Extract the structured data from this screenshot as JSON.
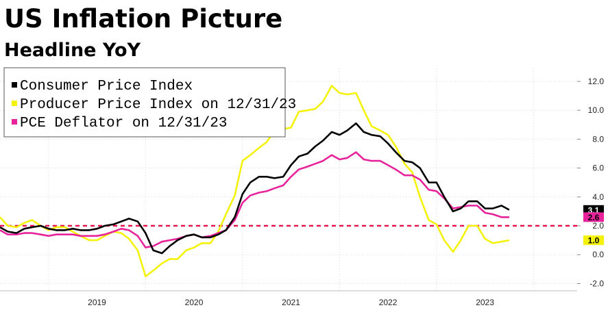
{
  "chart_data": {
    "type": "line",
    "title": "US Inflation Picture",
    "subtitle": "Headline YoY",
    "xlabel": "",
    "ylabel": "",
    "x_ticks": [
      "2019",
      "2020",
      "2021",
      "2022",
      "2023"
    ],
    "y_ticks": [
      "12.0",
      "10.0",
      "8.0",
      "6.0",
      "4.0",
      "2.0",
      "0.0",
      "-2.0"
    ],
    "ylim": [
      -2.5,
      12.9
    ],
    "xlim": [
      2018.0,
      2023.95
    ],
    "grid": true,
    "legend_position": "top-left",
    "reference_line": {
      "value": 2.0,
      "color": "#e8174d",
      "style": "dashed"
    },
    "series": [
      {
        "name": "Consumer Price Index",
        "color": "#000000",
        "end_label": "3.1",
        "points": [
          [
            2018.0,
            1.9
          ],
          [
            2018.08,
            1.6
          ],
          [
            2018.17,
            1.5
          ],
          [
            2018.25,
            1.8
          ],
          [
            2018.33,
            1.9
          ],
          [
            2018.42,
            2.0
          ],
          [
            2018.5,
            1.8
          ],
          [
            2018.58,
            1.7
          ],
          [
            2018.67,
            1.7
          ],
          [
            2018.75,
            1.8
          ],
          [
            2018.83,
            1.7
          ],
          [
            2018.92,
            1.7
          ],
          [
            2019.0,
            1.8
          ],
          [
            2019.08,
            2.0
          ],
          [
            2019.17,
            2.1
          ],
          [
            2019.25,
            2.3
          ],
          [
            2019.33,
            2.5
          ],
          [
            2019.42,
            2.3
          ],
          [
            2019.5,
            1.5
          ],
          [
            2019.58,
            0.3
          ],
          [
            2019.67,
            0.1
          ],
          [
            2019.75,
            0.6
          ],
          [
            2019.83,
            1.0
          ],
          [
            2019.92,
            1.3
          ],
          [
            2020.0,
            1.4
          ],
          [
            2020.08,
            1.2
          ],
          [
            2020.17,
            1.2
          ],
          [
            2020.25,
            1.4
          ],
          [
            2020.33,
            1.7
          ],
          [
            2020.42,
            2.6
          ],
          [
            2020.5,
            4.2
          ],
          [
            2020.58,
            5.0
          ],
          [
            2020.67,
            5.4
          ],
          [
            2020.75,
            5.4
          ],
          [
            2020.83,
            5.3
          ],
          [
            2020.92,
            5.4
          ],
          [
            2021.0,
            6.2
          ],
          [
            2021.08,
            6.8
          ],
          [
            2021.17,
            7.0
          ],
          [
            2021.25,
            7.5
          ],
          [
            2021.33,
            7.9
          ],
          [
            2021.42,
            8.5
          ],
          [
            2021.5,
            8.3
          ],
          [
            2021.58,
            8.6
          ],
          [
            2021.67,
            9.1
          ],
          [
            2021.75,
            8.5
          ],
          [
            2021.83,
            8.3
          ],
          [
            2021.92,
            8.2
          ],
          [
            2022.0,
            7.7
          ],
          [
            2022.08,
            7.1
          ],
          [
            2022.17,
            6.5
          ],
          [
            2022.25,
            6.4
          ],
          [
            2022.33,
            6.0
          ],
          [
            2022.42,
            5.0
          ],
          [
            2022.5,
            5.0
          ],
          [
            2022.58,
            4.0
          ],
          [
            2022.67,
            3.0
          ],
          [
            2022.75,
            3.2
          ],
          [
            2022.83,
            3.7
          ],
          [
            2022.92,
            3.7
          ],
          [
            2023.0,
            3.2
          ],
          [
            2023.08,
            3.2
          ],
          [
            2023.17,
            3.4
          ],
          [
            2023.25,
            3.1
          ]
        ]
      },
      {
        "name": "Producer Price Index  on 12/31/23",
        "color": "#f4f20a",
        "end_label": "1.0",
        "points": [
          [
            2018.0,
            2.6
          ],
          [
            2018.08,
            2.0
          ],
          [
            2018.17,
            1.9
          ],
          [
            2018.25,
            2.2
          ],
          [
            2018.33,
            2.4
          ],
          [
            2018.42,
            2.0
          ],
          [
            2018.5,
            1.7
          ],
          [
            2018.58,
            1.9
          ],
          [
            2018.67,
            1.9
          ],
          [
            2018.75,
            1.6
          ],
          [
            2018.83,
            1.3
          ],
          [
            2018.92,
            1.0
          ],
          [
            2019.0,
            1.0
          ],
          [
            2019.08,
            1.3
          ],
          [
            2019.17,
            1.6
          ],
          [
            2019.25,
            1.5
          ],
          [
            2019.33,
            1.1
          ],
          [
            2019.42,
            0.3
          ],
          [
            2019.5,
            -1.5
          ],
          [
            2019.58,
            -1.1
          ],
          [
            2019.67,
            -0.6
          ],
          [
            2019.75,
            -0.3
          ],
          [
            2019.83,
            -0.3
          ],
          [
            2019.92,
            0.3
          ],
          [
            2020.0,
            0.5
          ],
          [
            2020.08,
            0.8
          ],
          [
            2020.17,
            0.8
          ],
          [
            2020.25,
            1.6
          ],
          [
            2020.33,
            2.8
          ],
          [
            2020.42,
            4.1
          ],
          [
            2020.5,
            6.5
          ],
          [
            2020.58,
            6.9
          ],
          [
            2020.67,
            7.4
          ],
          [
            2020.75,
            7.8
          ],
          [
            2020.83,
            8.6
          ],
          [
            2020.92,
            8.7
          ],
          [
            2021.0,
            8.8
          ],
          [
            2021.08,
            9.9
          ],
          [
            2021.17,
            10.0
          ],
          [
            2021.25,
            10.1
          ],
          [
            2021.33,
            10.6
          ],
          [
            2021.42,
            11.7
          ],
          [
            2021.5,
            11.2
          ],
          [
            2021.58,
            11.1
          ],
          [
            2021.67,
            11.2
          ],
          [
            2021.75,
            10.0
          ],
          [
            2021.83,
            8.9
          ],
          [
            2021.92,
            8.6
          ],
          [
            2022.0,
            8.3
          ],
          [
            2022.08,
            7.5
          ],
          [
            2022.17,
            6.3
          ],
          [
            2022.25,
            5.7
          ],
          [
            2022.33,
            4.0
          ],
          [
            2022.42,
            2.4
          ],
          [
            2022.5,
            2.1
          ],
          [
            2022.58,
            1.0
          ],
          [
            2022.67,
            0.2
          ],
          [
            2022.75,
            1.0
          ],
          [
            2022.83,
            2.0
          ],
          [
            2022.92,
            2.0
          ],
          [
            2023.0,
            1.1
          ],
          [
            2023.08,
            0.8
          ],
          [
            2023.17,
            0.9
          ],
          [
            2023.25,
            1.0
          ]
        ]
      },
      {
        "name": "PCE Deflator  on 12/31/23",
        "color": "#e8229a",
        "end_label": "2.6",
        "points": [
          [
            2018.0,
            1.7
          ],
          [
            2018.08,
            1.4
          ],
          [
            2018.17,
            1.4
          ],
          [
            2018.25,
            1.5
          ],
          [
            2018.33,
            1.5
          ],
          [
            2018.42,
            1.4
          ],
          [
            2018.5,
            1.3
          ],
          [
            2018.58,
            1.4
          ],
          [
            2018.67,
            1.4
          ],
          [
            2018.75,
            1.4
          ],
          [
            2018.83,
            1.3
          ],
          [
            2018.92,
            1.3
          ],
          [
            2019.0,
            1.3
          ],
          [
            2019.08,
            1.4
          ],
          [
            2019.17,
            1.6
          ],
          [
            2019.25,
            1.8
          ],
          [
            2019.33,
            1.7
          ],
          [
            2019.42,
            1.3
          ],
          [
            2019.5,
            0.5
          ],
          [
            2019.58,
            0.6
          ],
          [
            2019.67,
            0.9
          ],
          [
            2019.75,
            1.0
          ],
          [
            2019.83,
            1.1
          ],
          [
            2019.92,
            1.3
          ],
          [
            2020.0,
            1.4
          ],
          [
            2020.08,
            1.2
          ],
          [
            2020.17,
            1.3
          ],
          [
            2020.25,
            1.5
          ],
          [
            2020.33,
            1.7
          ],
          [
            2020.42,
            2.4
          ],
          [
            2020.5,
            3.6
          ],
          [
            2020.58,
            4.1
          ],
          [
            2020.67,
            4.3
          ],
          [
            2020.75,
            4.4
          ],
          [
            2020.83,
            4.6
          ],
          [
            2020.92,
            4.8
          ],
          [
            2021.0,
            5.4
          ],
          [
            2021.08,
            5.9
          ],
          [
            2021.17,
            6.1
          ],
          [
            2021.25,
            6.3
          ],
          [
            2021.33,
            6.5
          ],
          [
            2021.42,
            6.9
          ],
          [
            2021.5,
            6.6
          ],
          [
            2021.58,
            6.7
          ],
          [
            2021.67,
            7.1
          ],
          [
            2021.75,
            6.6
          ],
          [
            2021.83,
            6.5
          ],
          [
            2021.92,
            6.5
          ],
          [
            2022.0,
            6.2
          ],
          [
            2022.08,
            5.9
          ],
          [
            2022.17,
            5.5
          ],
          [
            2022.25,
            5.5
          ],
          [
            2022.33,
            5.2
          ],
          [
            2022.42,
            4.5
          ],
          [
            2022.5,
            4.4
          ],
          [
            2022.58,
            3.9
          ],
          [
            2022.67,
            3.2
          ],
          [
            2022.75,
            3.3
          ],
          [
            2022.83,
            3.4
          ],
          [
            2022.92,
            3.4
          ],
          [
            2023.0,
            2.9
          ],
          [
            2023.08,
            2.8
          ],
          [
            2023.17,
            2.6
          ],
          [
            2023.25,
            2.6
          ]
        ]
      }
    ]
  }
}
